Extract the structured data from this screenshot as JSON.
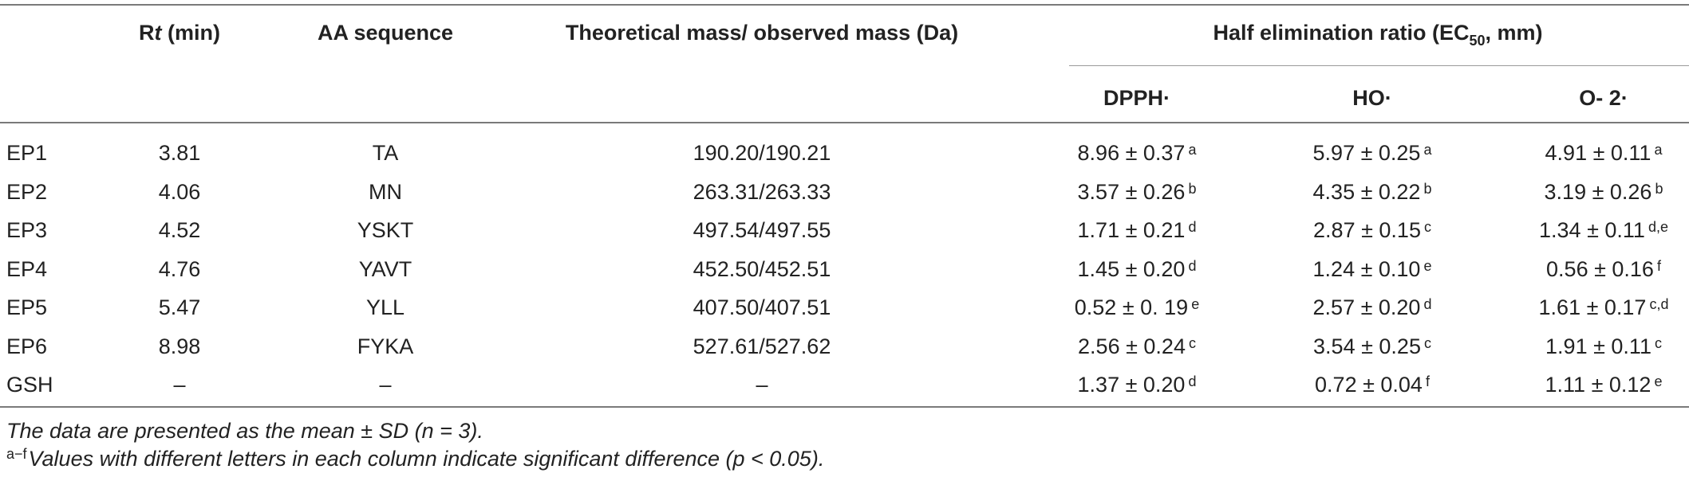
{
  "header": {
    "rt_pre": "R",
    "rt_ital": "t",
    "rt_post": " (min)",
    "aa": "AA sequence",
    "mass": "Theoretical mass/ observed mass (Da)",
    "half_pre": "Half elimination ratio (EC",
    "half_sub": "50",
    "half_post": ", mm)",
    "dpph": "DPPH·",
    "ho": "HO·",
    "o2": "O- 2·"
  },
  "rows": [
    {
      "id": "EP1",
      "rt": "3.81",
      "aa": "TA",
      "mass": "190.20/190.21",
      "dpph": "8.96 ± 0.37",
      "dpph_sup": "a",
      "ho": "5.97 ± 0.25",
      "ho_sup": "a",
      "o2": "4.91 ± 0.11",
      "o2_sup": "a"
    },
    {
      "id": "EP2",
      "rt": "4.06",
      "aa": "MN",
      "mass": "263.31/263.33",
      "dpph": "3.57 ± 0.26",
      "dpph_sup": "b",
      "ho": "4.35 ± 0.22",
      "ho_sup": "b",
      "o2": "3.19 ± 0.26",
      "o2_sup": "b"
    },
    {
      "id": "EP3",
      "rt": "4.52",
      "aa": "YSKT",
      "mass": "497.54/497.55",
      "dpph": "1.71 ± 0.21",
      "dpph_sup": "d",
      "ho": "2.87 ± 0.15",
      "ho_sup": "c",
      "o2": "1.34 ± 0.11",
      "o2_sup": "d,e"
    },
    {
      "id": "EP4",
      "rt": "4.76",
      "aa": "YAVT",
      "mass": "452.50/452.51",
      "dpph": "1.45 ± 0.20",
      "dpph_sup": "d",
      "ho": "1.24 ± 0.10",
      "ho_sup": "e",
      "o2": "0.56 ± 0.16",
      "o2_sup": "f"
    },
    {
      "id": "EP5",
      "rt": "5.47",
      "aa": "YLL",
      "mass": "407.50/407.51",
      "dpph": "0.52 ± 0. 19",
      "dpph_sup": "e",
      "ho": "2.57 ± 0.20",
      "ho_sup": "d",
      "o2": "1.61 ± 0.17",
      "o2_sup": "c,d"
    },
    {
      "id": "EP6",
      "rt": "8.98",
      "aa": "FYKA",
      "mass": "527.61/527.62",
      "dpph": "2.56 ± 0.24",
      "dpph_sup": "c",
      "ho": "3.54 ± 0.25",
      "ho_sup": "c",
      "o2": "1.91 ± 0.11",
      "o2_sup": "c"
    },
    {
      "id": "GSH",
      "rt": "–",
      "aa": "–",
      "mass": "–",
      "dpph": "1.37 ± 0.20",
      "dpph_sup": "d",
      "ho": "0.72 ± 0.04",
      "ho_sup": "f",
      "o2": "1.11 ± 0.12",
      "o2_sup": "e"
    }
  ],
  "footnotes": {
    "line1": "The data are presented as the mean ± SD (n = 3).",
    "line2_sup": "a−f",
    "line2": "Values with different letters in each column indicate significant difference (p < 0.05)."
  }
}
